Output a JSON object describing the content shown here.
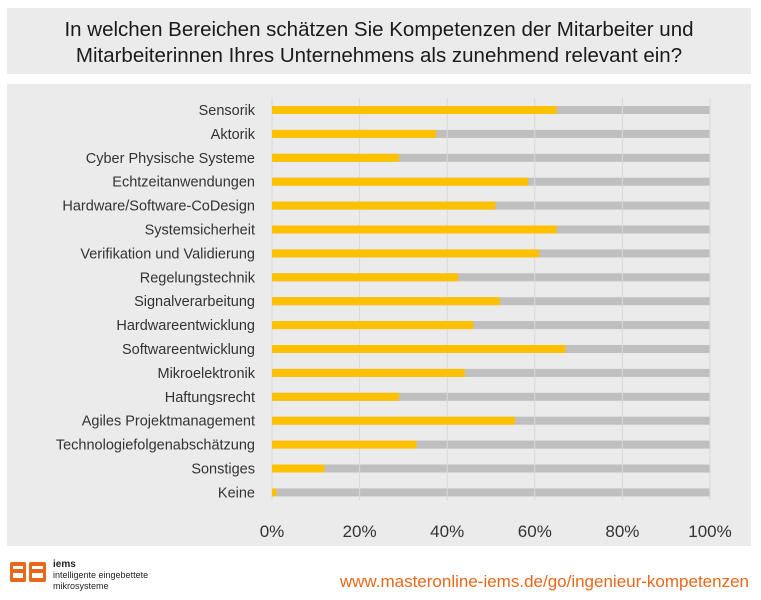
{
  "title": {
    "line1": "In welchen Bereichen schätzen Sie Kompetenzen der Mitarbeiter und",
    "line2": "Mitarbeiterinnen Ihres Unternehmens als zunehmend relevant ein?"
  },
  "footer": {
    "brand": "iems",
    "tagline1": "intelligente eingebettete",
    "tagline2": "mikrosysteme",
    "url": "www.masteronline-iems.de/go/ingenieur-kompetenzen"
  },
  "colors": {
    "bar": "#ffc000",
    "track": "#bfbfbf",
    "background": "#ebebeb",
    "url": "#e8681b",
    "logo": "#e8681b"
  },
  "chart_data": {
    "type": "bar",
    "orientation": "horizontal",
    "categories": [
      "Sensorik",
      "Aktorik",
      "Cyber Physische Systeme",
      "Echtzeitanwendungen",
      "Hardware/Software-CoDesign",
      "Systemsicherheit",
      "Verifikation und Validierung",
      "Regelungstechnik",
      "Signalverarbeitung",
      "Hardwareentwicklung",
      "Softwareentwicklung",
      "Mikroelektronik",
      "Haftungsrecht",
      "Agiles Projektmanagement",
      "Technologiefolgenabschätzung",
      "Sonstiges",
      "Keine"
    ],
    "values": [
      65,
      37.5,
      29,
      58.5,
      51,
      65,
      61,
      42.5,
      52,
      46,
      67,
      44,
      29,
      55.5,
      33,
      12,
      1
    ],
    "xlim": [
      0,
      100
    ],
    "xticks": [
      "0%",
      "20%",
      "40%",
      "60%",
      "80%",
      "100%"
    ],
    "grid": true,
    "legend": "none"
  }
}
